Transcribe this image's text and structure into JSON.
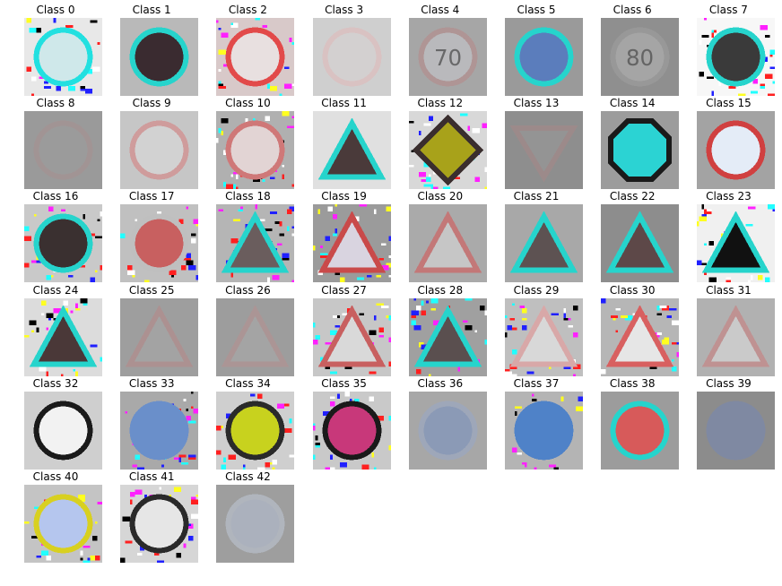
{
  "panels": [
    {
      "label": "Class 0",
      "bg": "#e8e8e8",
      "shape": "circle",
      "fill": "#cfe8ea",
      "border": "#22e0e0",
      "glyph": "",
      "noise": true,
      "faded": false
    },
    {
      "label": "Class 1",
      "bg": "#b9b9b9",
      "shape": "circle",
      "fill": "#3a2b30",
      "border": "#26d4cc",
      "glyph": "",
      "noise": false,
      "faded": false
    },
    {
      "label": "Class 2",
      "bg": "#d8c9c9",
      "shape": "circle",
      "fill": "#e8e0e0",
      "border": "#e24a4a",
      "glyph": "",
      "noise": true,
      "faded": false
    },
    {
      "label": "Class 3",
      "bg": "#cfcfcf",
      "shape": "circle",
      "fill": "#d8d2d2",
      "border": "#e2b8b8",
      "glyph": "",
      "noise": false,
      "faded": true
    },
    {
      "label": "Class 4",
      "bg": "#a6a6a6",
      "shape": "circle",
      "fill": "#c9c9cf",
      "border": "#b88888",
      "glyph": "70",
      "noise": false,
      "faded": true
    },
    {
      "label": "Class 5",
      "bg": "#9a9a9a",
      "shape": "circle",
      "fill": "#5b7dbc",
      "border": "#26d4cc",
      "glyph": "",
      "noise": false,
      "faded": false
    },
    {
      "label": "Class 6",
      "bg": "#8f8f8f",
      "shape": "circle",
      "fill": "#b8b8b8",
      "border": "#a0a0a0",
      "glyph": "80",
      "noise": false,
      "faded": true
    },
    {
      "label": "Class 7",
      "bg": "#f7f7f7",
      "shape": "circle",
      "fill": "#3a3a3a",
      "border": "#26d4cc",
      "glyph": "",
      "noise": true,
      "faded": false
    },
    {
      "label": "Class 8",
      "bg": "#9a9a9a",
      "shape": "circle",
      "fill": "#9c9c9c",
      "border": "#a89090",
      "glyph": "",
      "noise": false,
      "faded": true
    },
    {
      "label": "Class 9",
      "bg": "#c6c6c6",
      "shape": "circle",
      "fill": "#dcdcdc",
      "border": "#d87a7a",
      "glyph": "",
      "noise": false,
      "faded": true
    },
    {
      "label": "Class 10",
      "bg": "#b0b0b0",
      "shape": "circle",
      "fill": "#e2d4d4",
      "border": "#cf7878",
      "glyph": "",
      "noise": true,
      "faded": false
    },
    {
      "label": "Class 11",
      "bg": "#e0e0e0",
      "shape": "triangle",
      "fill": "#4a3a3a",
      "border": "#26d4cc",
      "glyph": "",
      "noise": false,
      "faded": false
    },
    {
      "label": "Class 12",
      "bg": "#d8d8d8",
      "shape": "diamond",
      "fill": "#a8a21a",
      "border": "#3a2e2e",
      "glyph": "",
      "noise": true,
      "faded": false
    },
    {
      "label": "Class 13",
      "bg": "#8e8e8e",
      "shape": "invtri",
      "fill": "#999999",
      "border": "#a88888",
      "glyph": "",
      "noise": false,
      "faded": true
    },
    {
      "label": "Class 14",
      "bg": "#9c9c9c",
      "shape": "octagon",
      "fill": "#2bd3d3",
      "border": "#1a1a1a",
      "glyph": "",
      "noise": false,
      "faded": false
    },
    {
      "label": "Class 15",
      "bg": "#a3a3a3",
      "shape": "circle",
      "fill": "#e4ecf7",
      "border": "#d04040",
      "glyph": "",
      "noise": false,
      "faded": false
    },
    {
      "label": "Class 16",
      "bg": "#c9c9c9",
      "shape": "circle",
      "fill": "#3a3030",
      "border": "#26d4cc",
      "glyph": "",
      "noise": true,
      "faded": false
    },
    {
      "label": "Class 17",
      "bg": "#c0c0c0",
      "shape": "circle",
      "fill": "#c86060",
      "border": "#bfbfbf",
      "glyph": "",
      "noise": true,
      "faded": false
    },
    {
      "label": "Class 18",
      "bg": "#b5b5b5",
      "shape": "triangle",
      "fill": "#6a5d5d",
      "border": "#26d4cc",
      "glyph": "",
      "noise": true,
      "faded": false
    },
    {
      "label": "Class 19",
      "bg": "#9b9b9b",
      "shape": "triangle",
      "fill": "#d9d4e0",
      "border": "#c94a4a",
      "glyph": "",
      "noise": true,
      "faded": false
    },
    {
      "label": "Class 20",
      "bg": "#aaaaaa",
      "shape": "triangle",
      "fill": "#dedede",
      "border": "#d85050",
      "glyph": "",
      "noise": false,
      "faded": true
    },
    {
      "label": "Class 21",
      "bg": "#a8a8a8",
      "shape": "triangle",
      "fill": "#5d5252",
      "border": "#26d4cc",
      "glyph": "",
      "noise": false,
      "faded": false
    },
    {
      "label": "Class 22",
      "bg": "#8d8d8d",
      "shape": "triangle",
      "fill": "#5d4848",
      "border": "#26d4cc",
      "glyph": "",
      "noise": false,
      "faded": false
    },
    {
      "label": "Class 23",
      "bg": "#f0f0f0",
      "shape": "triangle",
      "fill": "#111111",
      "border": "#26d4cc",
      "glyph": "",
      "noise": true,
      "faded": false
    },
    {
      "label": "Class 24",
      "bg": "#dcdcdc",
      "shape": "triangle",
      "fill": "#4a3838",
      "border": "#26d4cc",
      "glyph": "",
      "noise": true,
      "faded": false
    },
    {
      "label": "Class 25",
      "bg": "#9e9e9e",
      "shape": "triangle",
      "fill": "#a8a8a8",
      "border": "#b88888",
      "glyph": "",
      "noise": false,
      "faded": true
    },
    {
      "label": "Class 26",
      "bg": "#9d9d9d",
      "shape": "triangle",
      "fill": "#aaaaaa",
      "border": "#b89090",
      "glyph": "",
      "noise": false,
      "faded": true
    },
    {
      "label": "Class 27",
      "bg": "#c7c7c7",
      "shape": "triangle",
      "fill": "#d9d9d9",
      "border": "#c86060",
      "glyph": "",
      "noise": true,
      "faded": false
    },
    {
      "label": "Class 28",
      "bg": "#a0a0a0",
      "shape": "triangle",
      "fill": "#5a4f4f",
      "border": "#26d4cc",
      "glyph": "",
      "noise": true,
      "faded": false
    },
    {
      "label": "Class 29",
      "bg": "#bfbfbf",
      "shape": "triangle",
      "fill": "#d8d8d8",
      "border": "#d8a8a8",
      "glyph": "",
      "noise": true,
      "faded": false
    },
    {
      "label": "Class 30",
      "bg": "#b6b6b6",
      "shape": "triangle",
      "fill": "#e6e6e6",
      "border": "#d86060",
      "glyph": "",
      "noise": true,
      "faded": false
    },
    {
      "label": "Class 31",
      "bg": "#b1b1b1",
      "shape": "triangle",
      "fill": "#e0e0e0",
      "border": "#cc7a7a",
      "glyph": "",
      "noise": false,
      "faded": true
    },
    {
      "label": "Class 32",
      "bg": "#cfcfcf",
      "shape": "circle",
      "fill": "#f2f2f2",
      "border": "#1a1a1a",
      "glyph": "",
      "noise": false,
      "faded": false
    },
    {
      "label": "Class 33",
      "bg": "#a9a9a9",
      "shape": "circle",
      "fill": "#6a8fca",
      "border": "#6a8fca",
      "glyph": "",
      "noise": true,
      "faded": false
    },
    {
      "label": "Class 34",
      "bg": "#cfcfcf",
      "shape": "circle",
      "fill": "#c8d21e",
      "border": "#2a2a2a",
      "glyph": "",
      "noise": true,
      "faded": false
    },
    {
      "label": "Class 35",
      "bg": "#c9c9c9",
      "shape": "circle",
      "fill": "#c8387a",
      "border": "#1a1a1a",
      "glyph": "",
      "noise": true,
      "faded": false
    },
    {
      "label": "Class 36",
      "bg": "#a7a7a7",
      "shape": "circle",
      "fill": "#7590c4",
      "border": "#98a8c8",
      "glyph": "",
      "noise": false,
      "faded": true
    },
    {
      "label": "Class 37",
      "bg": "#b4b4b4",
      "shape": "circle",
      "fill": "#4f82c8",
      "border": "#4f82c8",
      "glyph": "",
      "noise": true,
      "faded": false
    },
    {
      "label": "Class 38",
      "bg": "#9c9c9c",
      "shape": "circle",
      "fill": "#d75a5a",
      "border": "#26d4cc",
      "glyph": "",
      "noise": false,
      "faded": false
    },
    {
      "label": "Class 39",
      "bg": "#8c8c8c",
      "shape": "circle",
      "fill": "#7688b4",
      "border": "#7688b4",
      "glyph": "",
      "noise": false,
      "faded": true
    },
    {
      "label": "Class 40",
      "bg": "#c4c4c4",
      "shape": "circle",
      "fill": "#b5c6ee",
      "border": "#d8d020",
      "glyph": "",
      "noise": true,
      "faded": false
    },
    {
      "label": "Class 41",
      "bg": "#d6d6d6",
      "shape": "circle",
      "fill": "#e6e6e6",
      "border": "#2a2a2a",
      "glyph": "",
      "noise": true,
      "faded": false
    },
    {
      "label": "Class 42",
      "bg": "#9e9e9e",
      "shape": "circle",
      "fill": "#b7c2d8",
      "border": "#c0c8d8",
      "glyph": "",
      "noise": false,
      "faded": true
    }
  ]
}
